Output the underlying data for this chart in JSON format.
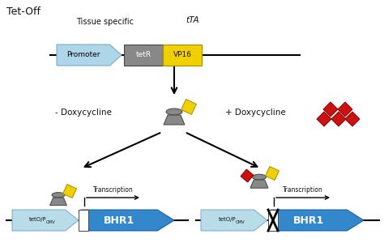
{
  "title": "Tet-Off",
  "bg_color": "#ffffff",
  "label_tissue_specific": "Tissue specific",
  "label_tTA": "tTA",
  "label_promoter": "Promoter",
  "label_tetR": "tetR",
  "label_VP16": "VP16",
  "label_minus_doxy": "- Doxycycline",
  "label_plus_doxy": "+ Doxycycline",
  "label_transcription": "Transcription",
  "label_BHR1": "BHR1",
  "color_promoter": "#aed6e8",
  "color_tetR": "#888888",
  "color_VP16": "#f0d000",
  "color_tetO": "#b8dce8",
  "color_BHR1": "#3388cc",
  "color_gray": "#888888",
  "color_yellow": "#f0d000",
  "color_red": "#cc1111",
  "color_line": "#000000",
  "color_text": "#111111",
  "color_white": "#ffffff"
}
